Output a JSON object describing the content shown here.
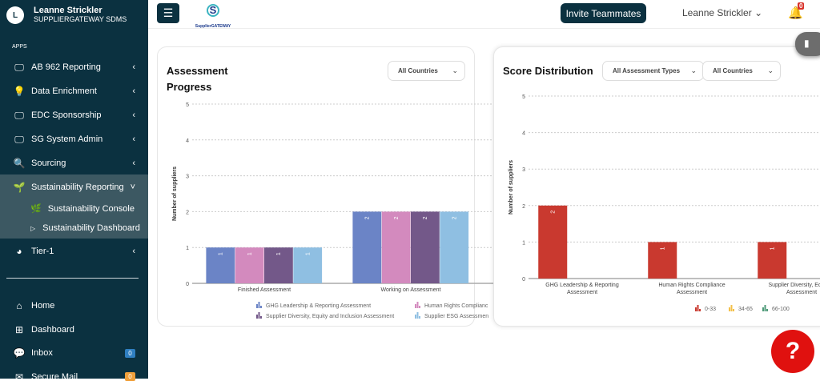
{
  "sidebar": {
    "user": {
      "initial": "L",
      "name": "Leanne Strickler",
      "org": "SUPPLIERGATEWAY SDMS"
    },
    "section_label": "APPS",
    "items": [
      {
        "label": "AB 962 Reporting",
        "icon": "monitor-icon"
      },
      {
        "label": "Data Enrichment",
        "icon": "lightbulb-icon"
      },
      {
        "label": "EDC Sponsorship",
        "icon": "monitor-icon"
      },
      {
        "label": "SG System Admin",
        "icon": "monitor-icon"
      },
      {
        "label": "Sourcing",
        "icon": "search-icon"
      },
      {
        "label": "Sustainability Reporting",
        "icon": "seedling-icon",
        "expanded": true
      },
      {
        "label": "Tier-1",
        "icon": "pie-chart-icon"
      }
    ],
    "subitems": [
      {
        "label": "Sustainability Console",
        "icon": "leaf-icon"
      },
      {
        "label": "Sustainability Dashboard",
        "icon": "play-outline-icon"
      }
    ],
    "bottom": [
      {
        "label": "Home",
        "icon": "home-icon"
      },
      {
        "label": "Dashboard",
        "icon": "grid-icon"
      },
      {
        "label": "Inbox",
        "icon": "chat-icon",
        "badge": "0",
        "badge_color": "#2f7fc1"
      },
      {
        "label": "Secure Mail",
        "icon": "mail-icon",
        "badge": "0",
        "badge_color": "#f0a03c"
      }
    ]
  },
  "topbar": {
    "logo_text": "SupplierGATEWAY",
    "invite_label": "Invite Teammates",
    "user_label": "Leanne Strickler",
    "notification_count": "0"
  },
  "help_label": "?",
  "chart_data": [
    {
      "type": "bar",
      "title": "Assessment Progress",
      "filter": "All Countries",
      "ylabel": "Number of suppliers",
      "ylim": [
        0,
        5
      ],
      "yticks": [
        "0",
        "1",
        "2",
        "3",
        "4",
        "5"
      ],
      "grid": true,
      "categories": [
        "Finished Assessment",
        "Working on Assessment"
      ],
      "series": [
        {
          "name": "GHG Leadership & Reporting Assessment",
          "color": "#6b84c6",
          "values": [
            1,
            2
          ]
        },
        {
          "name": "Human Rights Complianc",
          "color": "#d38abe",
          "values": [
            1,
            2
          ]
        },
        {
          "name": "Supplier Diversity, Equity and Inclusion Assessment",
          "color": "#735889",
          "values": [
            1,
            2
          ]
        },
        {
          "name": "Supplier ESG Assessmen",
          "color": "#8fbfe2",
          "values": [
            1,
            2
          ]
        }
      ],
      "legend": "bottom"
    },
    {
      "type": "bar",
      "title": "Score Distribution",
      "filters": [
        "All Assessment Types",
        "All Countries"
      ],
      "ylabel": "Number of suppliers",
      "ylim": [
        0,
        5
      ],
      "yticks": [
        "0",
        "1",
        "2",
        "3",
        "4",
        "5"
      ],
      "grid": true,
      "categories": [
        [
          "GHG Leadership & Reporting",
          "Assessment"
        ],
        [
          "Human Rights Compliance",
          "Assessment"
        ],
        [
          "Supplier Diversity, Equity a",
          "Assessment"
        ]
      ],
      "series": [
        {
          "name": "0-33",
          "color": "#c9392f",
          "values": [
            2,
            1,
            1
          ]
        },
        {
          "name": "34-65",
          "color": "#f3c04a",
          "values": [
            0,
            0,
            0
          ]
        },
        {
          "name": "66-100",
          "color": "#4e9a78",
          "values": [
            0,
            0,
            0
          ]
        }
      ],
      "legend": "bottom"
    }
  ]
}
